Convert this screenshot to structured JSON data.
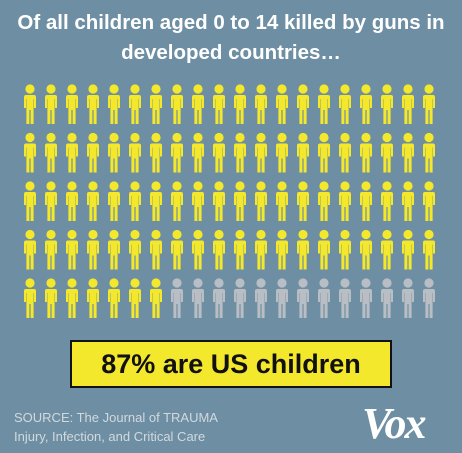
{
  "chart_data": {
    "type": "pictogram",
    "title": "Of all children aged 0 to 14 killed by guns in developed countries…",
    "values": [
      87,
      13
    ],
    "colors": [
      "#f4e82c",
      "#b9bec4"
    ],
    "annotation": "87% are US children",
    "source": [
      "SOURCE: The Journal of TRAUMA",
      "Injury, Infection, and Critical Care"
    ],
    "logo": "Vox"
  }
}
